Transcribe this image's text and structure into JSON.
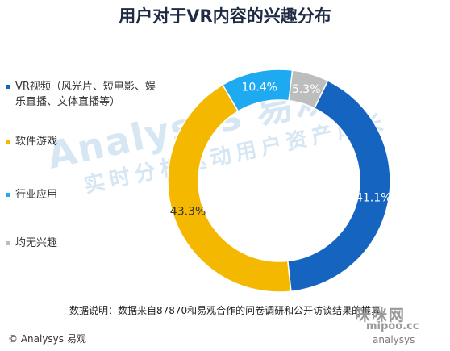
{
  "header": {
    "title": "用户对于VR内容的兴趣分布"
  },
  "watermark": {
    "logo": "Analysys 易观",
    "slogan": "实时分析驱动用户资产成长"
  },
  "chart_data": {
    "type": "pie",
    "title": "用户对于VR内容的兴趣分布",
    "categories": [
      "VR视频（风光片、短电影、娱乐直播、文体直播等）",
      "软件游戏",
      "行业应用",
      "均无兴趣"
    ],
    "values": [
      41.1,
      43.3,
      10.4,
      5.3
    ],
    "data_labels": [
      "41.1%",
      "43.3%",
      "10.4%",
      "5.3%"
    ],
    "colors": [
      "#1565c0",
      "#f5b800",
      "#1eaaf1",
      "#bdbdbd"
    ],
    "legend": "left"
  },
  "note": "数据说明：数据来自87870和易观合作的问卷调研和公开访谈结果的推算",
  "footer": {
    "copyright": "© Analysys 易观"
  },
  "site_watermark": {
    "name": "咪咪网",
    "url": "mipoo.cc",
    "logo": "analysys"
  }
}
